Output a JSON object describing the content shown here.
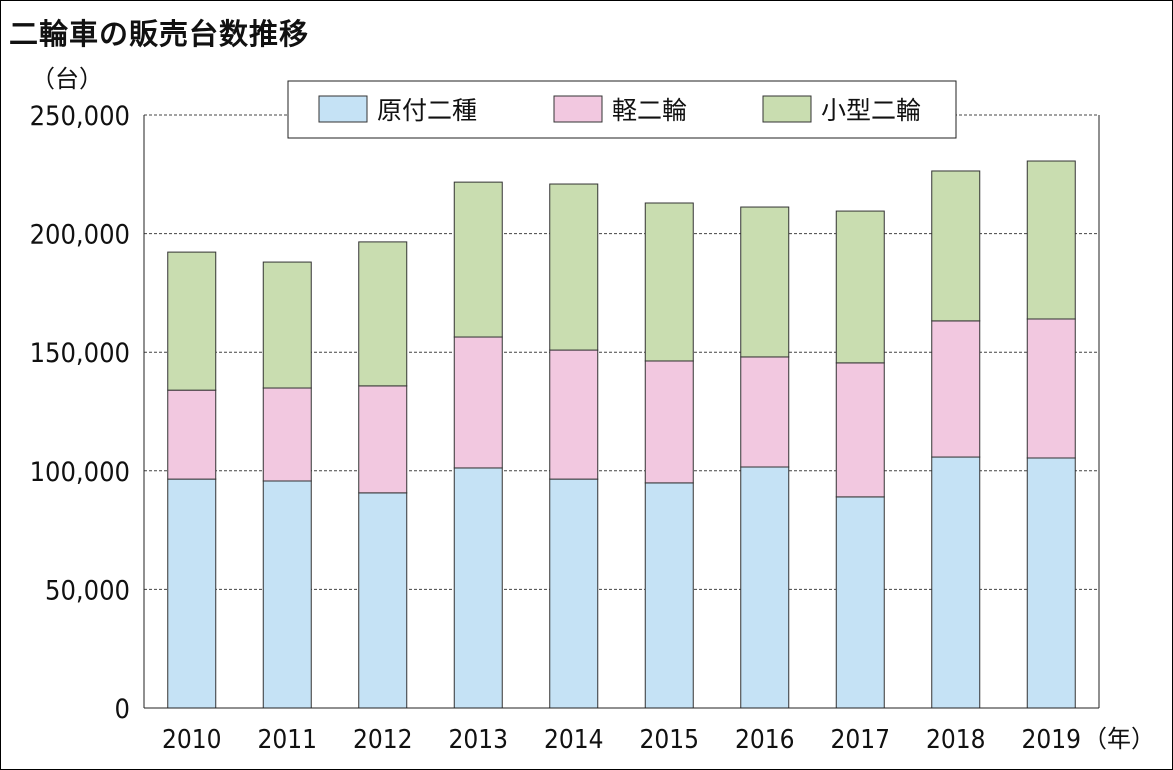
{
  "chart_data": {
    "type": "bar",
    "stacked": true,
    "title": "二輪車の販売台数推移",
    "ylabel": "（台）",
    "xlabel": "（年）",
    "ylim": [
      0,
      250000
    ],
    "yticks": [
      0,
      50000,
      100000,
      150000,
      200000,
      250000
    ],
    "ytick_labels": [
      "0",
      "50,000",
      "100,000",
      "150,000",
      "200,000",
      "250,000"
    ],
    "grid": "horizontal dashed",
    "legend_position": "top",
    "categories": [
      "2010",
      "2011",
      "2012",
      "2013",
      "2014",
      "2015",
      "2016",
      "2017",
      "2018",
      "2019"
    ],
    "series": [
      {
        "name": "原付二種",
        "color": "#c5e2f5",
        "values": [
          96500,
          95700,
          90700,
          101200,
          96500,
          94900,
          101600,
          89000,
          105800,
          105400
        ]
      },
      {
        "name": "軽二輪",
        "color": "#f2c8e0",
        "values": [
          37500,
          39200,
          45100,
          55200,
          54400,
          51400,
          46400,
          56500,
          57400,
          58600
        ]
      },
      {
        "name": "小型二輪",
        "color": "#c9ddb0",
        "values": [
          58200,
          53100,
          60700,
          65300,
          70000,
          66600,
          63200,
          64000,
          63200,
          66600
        ]
      }
    ]
  }
}
